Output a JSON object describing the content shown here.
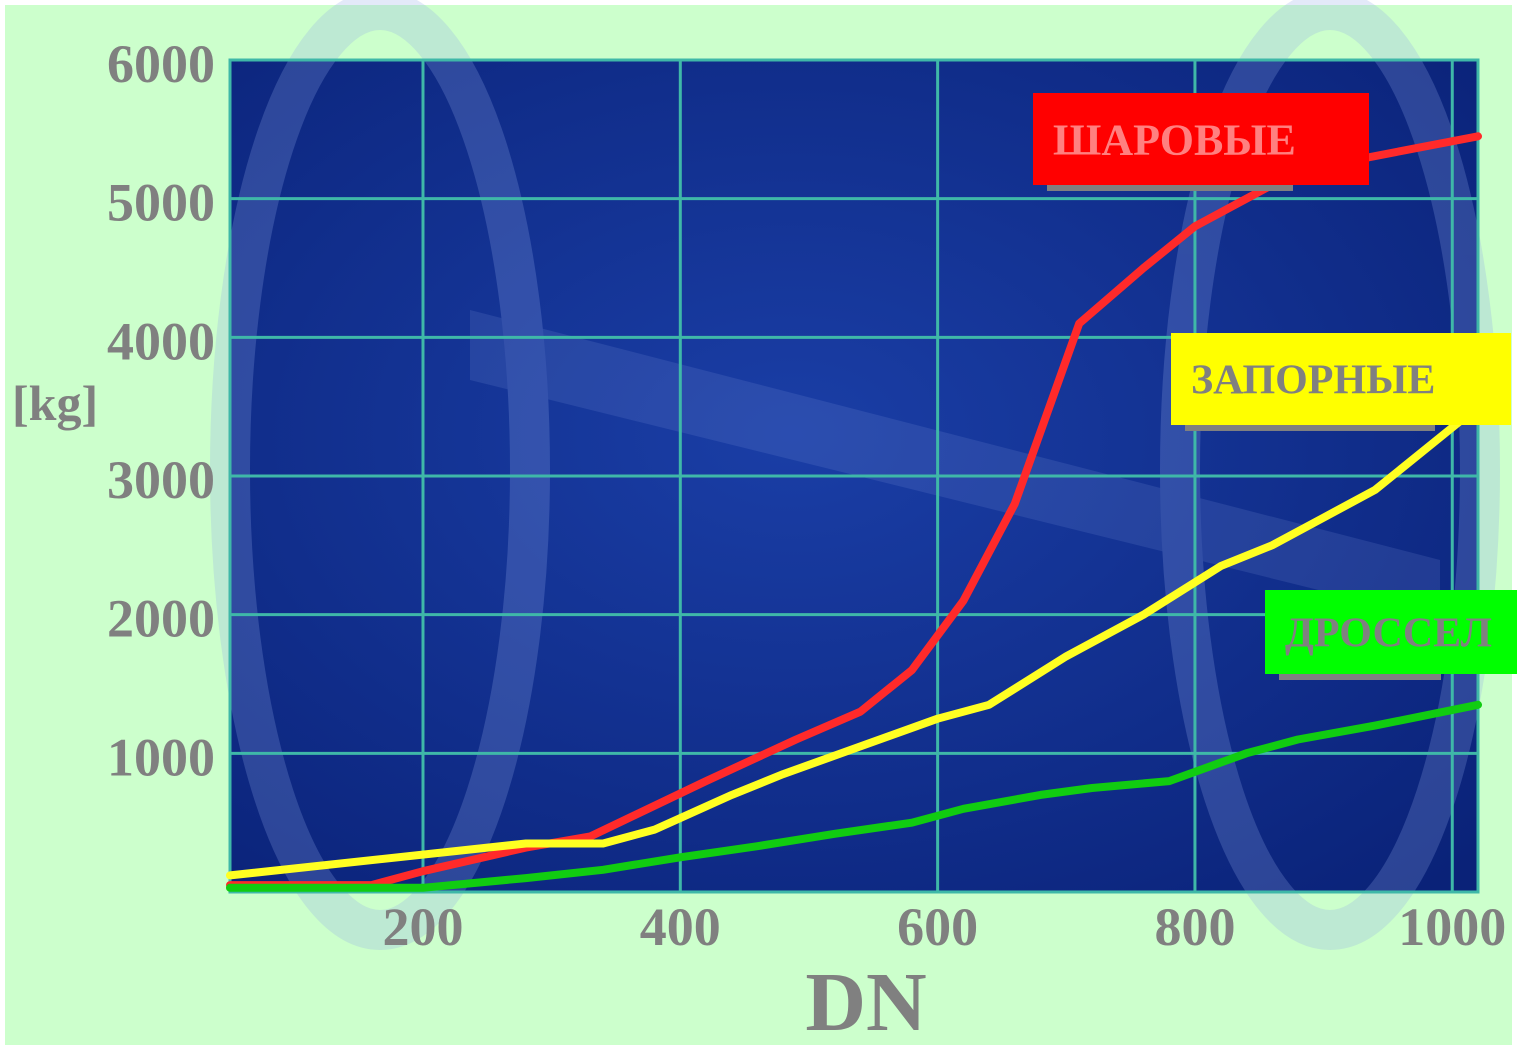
{
  "chart_data": {
    "type": "line",
    "xlabel": "DN",
    "ylabel": "[kg]",
    "xlim": [
      50,
      1020
    ],
    "ylim": [
      0,
      6000
    ],
    "x_ticks": [
      200,
      400,
      600,
      800,
      1000
    ],
    "y_ticks": [
      1000,
      2000,
      3000,
      4000,
      5000,
      6000
    ],
    "grid": true,
    "colors": {
      "background": "#ccffcc",
      "plot_area": "#0d2a8c",
      "grid": "#3fb8a8",
      "tick_labels": "#808080",
      "label_shadow": "#808080"
    },
    "series": [
      {
        "name": "ШАРОВЫЕ",
        "color": "#ff2a2a",
        "label_bg": "#ff0000",
        "label_text": "#ff8080",
        "x": [
          50,
          160,
          200,
          280,
          330,
          420,
          490,
          540,
          580,
          620,
          660,
          710,
          760,
          800,
          840,
          880,
          1020
        ],
        "y": [
          50,
          50,
          150,
          320,
          400,
          800,
          1100,
          1300,
          1600,
          2100,
          2800,
          4100,
          4500,
          4800,
          5000,
          5200,
          5450
        ]
      },
      {
        "name": "ЗАПОРНЫЕ",
        "color": "#ffff22",
        "label_bg": "#ffff00",
        "label_text": "#808080",
        "x": [
          50,
          280,
          340,
          380,
          440,
          480,
          540,
          600,
          640,
          700,
          760,
          820,
          860,
          900,
          940,
          1020
        ],
        "y": [
          120,
          350,
          350,
          450,
          700,
          850,
          1050,
          1250,
          1350,
          1700,
          2000,
          2350,
          2500,
          2700,
          2900,
          3500
        ]
      },
      {
        "name": "ДРОССЕЛ",
        "color": "#11cc11",
        "label_bg": "#00ff00",
        "label_text": "#808080",
        "x": [
          50,
          200,
          280,
          340,
          400,
          460,
          520,
          580,
          620,
          680,
          720,
          780,
          840,
          880,
          940,
          1020
        ],
        "y": [
          30,
          30,
          100,
          160,
          250,
          330,
          420,
          500,
          600,
          700,
          750,
          800,
          1000,
          1100,
          1200,
          1350
        ]
      }
    ]
  }
}
